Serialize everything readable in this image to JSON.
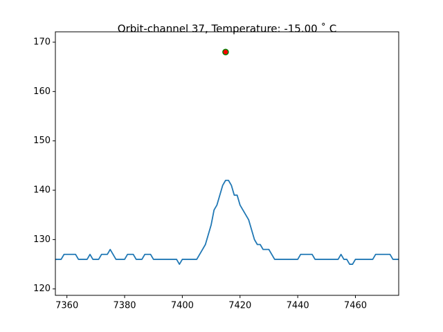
{
  "chart_data": {
    "type": "line",
    "title": "Orbit-channel 37, Temperature: -15.00 ˚ C",
    "x": [
      7356,
      7357,
      7358,
      7359,
      7360,
      7361,
      7362,
      7363,
      7364,
      7365,
      7366,
      7367,
      7368,
      7369,
      7370,
      7371,
      7372,
      7373,
      7374,
      7375,
      7376,
      7377,
      7378,
      7379,
      7380,
      7381,
      7382,
      7383,
      7384,
      7385,
      7386,
      7387,
      7388,
      7389,
      7390,
      7391,
      7392,
      7393,
      7394,
      7395,
      7396,
      7397,
      7398,
      7399,
      7400,
      7401,
      7402,
      7403,
      7404,
      7405,
      7406,
      7407,
      7408,
      7409,
      7410,
      7411,
      7412,
      7413,
      7414,
      7415,
      7416,
      7417,
      7418,
      7419,
      7420,
      7421,
      7422,
      7423,
      7424,
      7425,
      7426,
      7427,
      7428,
      7429,
      7430,
      7431,
      7432,
      7433,
      7434,
      7435,
      7436,
      7437,
      7438,
      7439,
      7440,
      7441,
      7442,
      7443,
      7444,
      7445,
      7446,
      7447,
      7448,
      7449,
      7450,
      7451,
      7452,
      7453,
      7454,
      7455,
      7456,
      7457,
      7458,
      7459,
      7460,
      7461,
      7462,
      7463,
      7464,
      7465,
      7466,
      7467,
      7468,
      7469,
      7470,
      7471,
      7472,
      7473,
      7474,
      7475
    ],
    "series": [
      {
        "color": "#1f77b4",
        "values": [
          126,
          126,
          126,
          127,
          127,
          127,
          127,
          127,
          126,
          126,
          126,
          126,
          127,
          126,
          126,
          126,
          127,
          127,
          127,
          128,
          127,
          126,
          126,
          126,
          126,
          127,
          127,
          127,
          126,
          126,
          126,
          127,
          127,
          127,
          126,
          126,
          126,
          126,
          126,
          126,
          126,
          126,
          126,
          125,
          126,
          126,
          126,
          126,
          126,
          126,
          127,
          128,
          129,
          131,
          133,
          136,
          137,
          139,
          141,
          142,
          142,
          141,
          139,
          139,
          137,
          136,
          135,
          134,
          132,
          130,
          129,
          129,
          128,
          128,
          128,
          127,
          126,
          126,
          126,
          126,
          126,
          126,
          126,
          126,
          126,
          127,
          127,
          127,
          127,
          127,
          126,
          126,
          126,
          126,
          126,
          126,
          126,
          126,
          126,
          127,
          126,
          126,
          125,
          125,
          126,
          126,
          126,
          126,
          126,
          126,
          126,
          127,
          127,
          127,
          127,
          127,
          127,
          126,
          126,
          126
        ]
      }
    ],
    "markers": {
      "x": [
        7415
      ],
      "y": [
        168
      ],
      "color": "red",
      "edgecolor": "green"
    },
    "xlim": [
      7356,
      7475
    ],
    "ylim": [
      118.7,
      172.1
    ],
    "xticks": [
      7360,
      7380,
      7400,
      7420,
      7440,
      7460
    ],
    "yticks": [
      120,
      130,
      140,
      150,
      160,
      170
    ]
  }
}
